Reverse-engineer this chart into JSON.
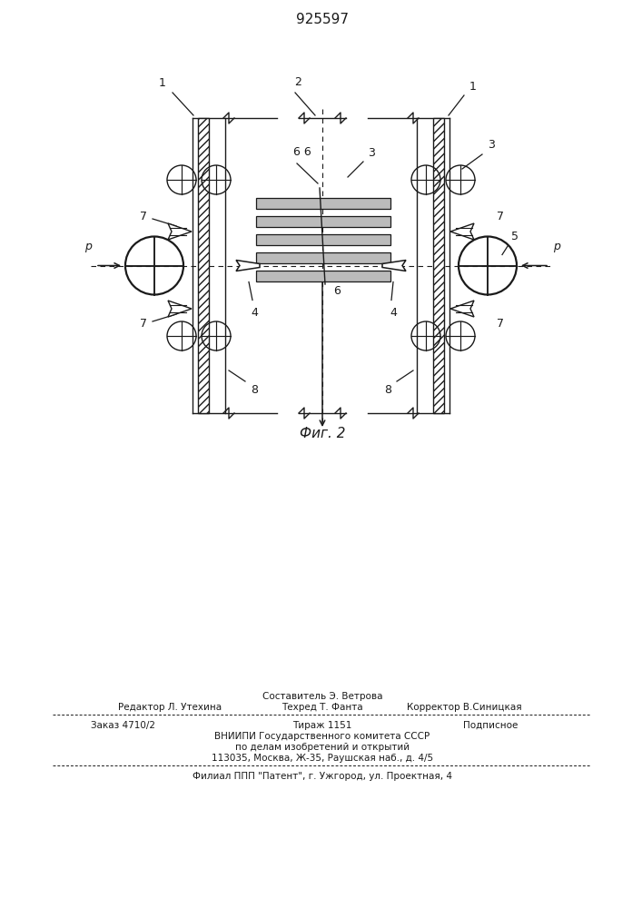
{
  "patent_number": "925597",
  "fig_label": "Фиг. 2",
  "bg": "#ffffff",
  "lc": "#1a1a1a",
  "footer": {
    "l0": "Составитель Э. Ветрова",
    "l1_left": "Редактор Л. Утехина",
    "l1_mid": "Техред Т. Фанта",
    "l1_right": "Корректор В.Синицкая",
    "l2_left": "Заказ 4710/2",
    "l2_mid": "Тираж 1151",
    "l2_right": "Подписное",
    "l3": "ВНИИПИ Государственного комитета СССР",
    "l4": "по делам изобретений и открытий",
    "l5": "113035, Москва, Ж-35, Раушская наб., д. 4/5",
    "l6": "Филиал ППП \"Патент\", г. Ужгород, ул. Проектная, 4"
  }
}
